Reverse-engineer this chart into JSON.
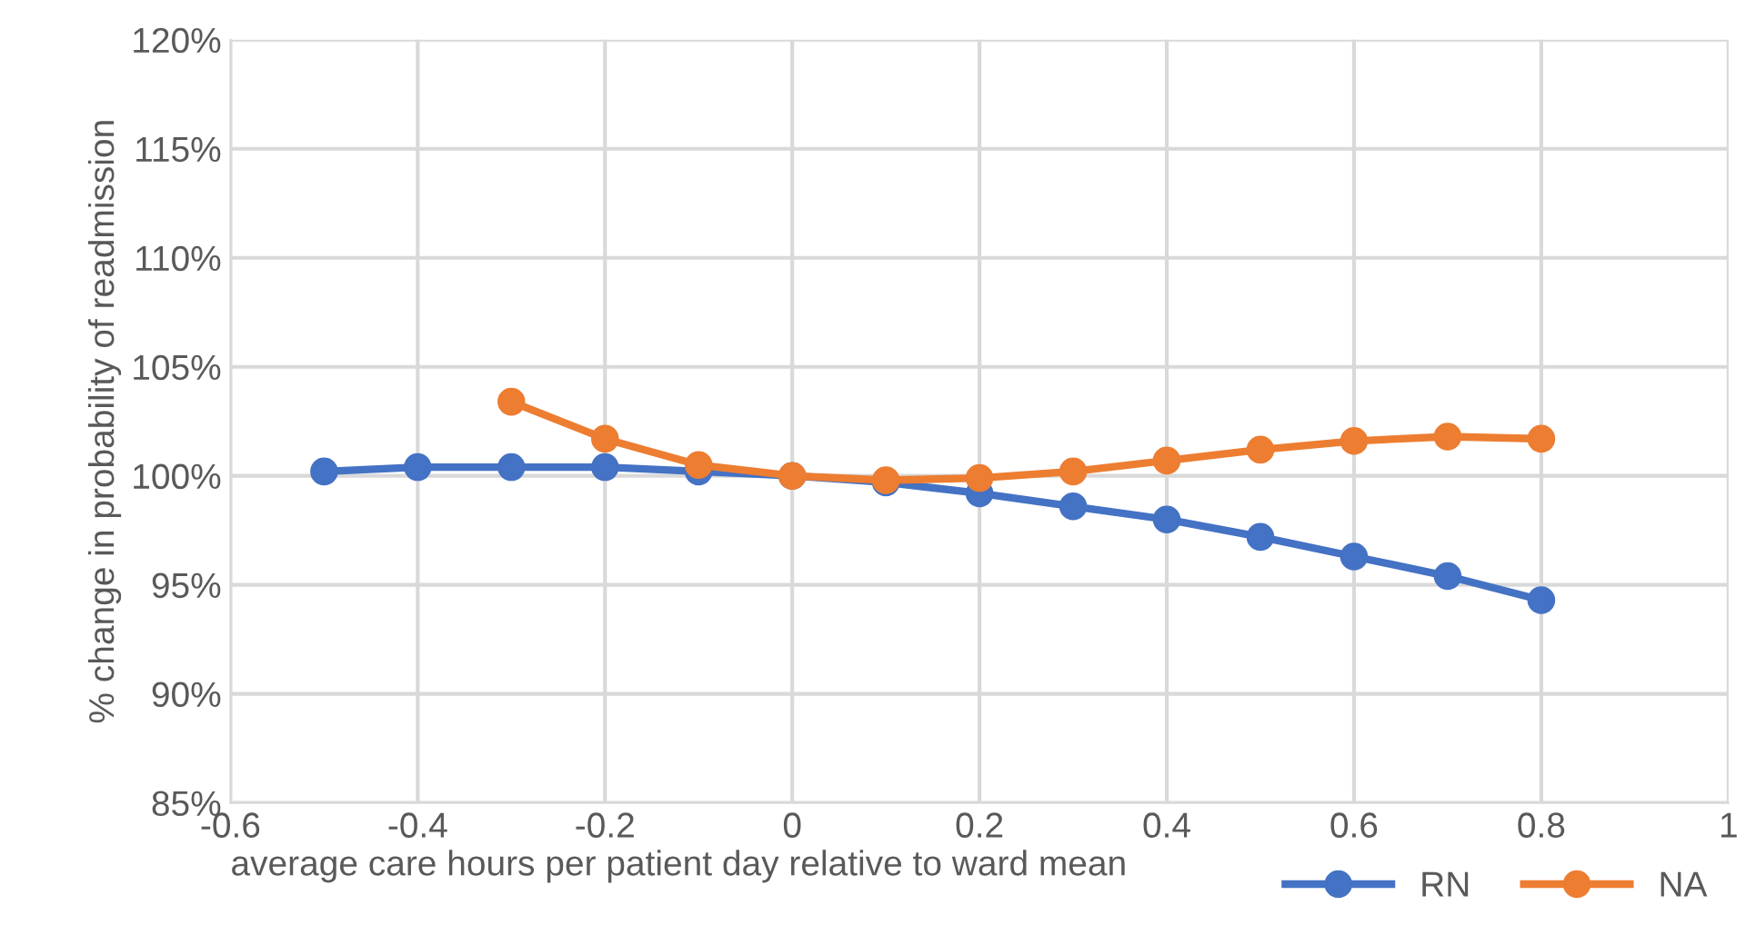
{
  "chart_data": {
    "type": "line",
    "xlabel": "average care hours per patient day relative to ward mean",
    "ylabel": "% change in probability of readmission",
    "xlim": [
      -0.6,
      1
    ],
    "xticks": [
      -0.6,
      -0.4,
      -0.2,
      0,
      0.2,
      0.4,
      0.6,
      0.8,
      1
    ],
    "ylim": [
      85,
      120
    ],
    "yticks": [
      {
        "value": 85,
        "label": "85%"
      },
      {
        "value": 90,
        "label": "90%"
      },
      {
        "value": 95,
        "label": "95%"
      },
      {
        "value": 100,
        "label": "100%"
      },
      {
        "value": 105,
        "label": "105%"
      },
      {
        "value": 110,
        "label": "110%"
      },
      {
        "value": 115,
        "label": "115%"
      },
      {
        "value": 120,
        "label": "120%"
      }
    ],
    "grid": true,
    "legend": "bottom right",
    "marker": "circle",
    "line_style": "solid",
    "series": [
      {
        "name": "RN",
        "color": "#4472c4",
        "x": [
          -0.5,
          -0.4,
          -0.3,
          -0.2,
          -0.1,
          0,
          0.1,
          0.2,
          0.3,
          0.4,
          0.5,
          0.6,
          0.7,
          0.8
        ],
        "values": [
          100.2,
          100.4,
          100.4,
          100.4,
          100.2,
          100,
          99.7,
          99.2,
          98.6,
          98.0,
          97.2,
          96.3,
          95.4,
          94.3
        ]
      },
      {
        "name": "NA",
        "color": "#ed7d31",
        "x": [
          -0.3,
          -0.2,
          -0.1,
          0,
          0.1,
          0.2,
          0.3,
          0.4,
          0.5,
          0.6,
          0.7,
          0.8
        ],
        "values": [
          103.4,
          101.7,
          100.5,
          100,
          99.8,
          99.9,
          100.2,
          100.7,
          101.2,
          101.6,
          101.8,
          101.7
        ]
      }
    ]
  }
}
